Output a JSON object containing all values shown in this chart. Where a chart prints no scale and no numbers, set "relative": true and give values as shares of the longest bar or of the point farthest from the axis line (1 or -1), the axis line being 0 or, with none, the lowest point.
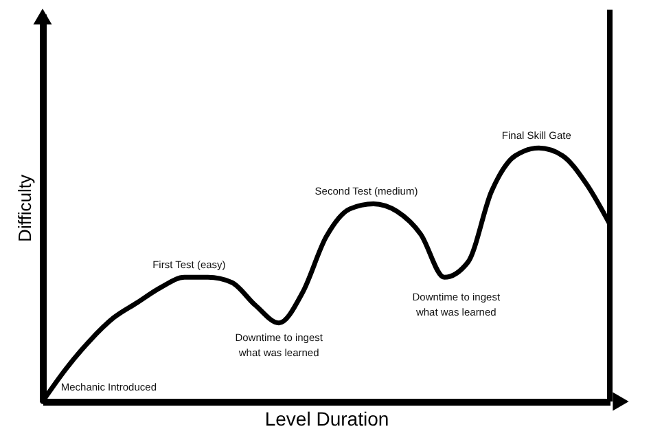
{
  "chart_data": {
    "type": "line",
    "relative": true,
    "xlabel": "Level Duration",
    "ylabel": "Difficulty",
    "categories": [
      null,
      null,
      null,
      null,
      null,
      null,
      null,
      null,
      null,
      null,
      null,
      null,
      null,
      null,
      null,
      null,
      null,
      null,
      null,
      null,
      null,
      null,
      null,
      null,
      null
    ],
    "series": [
      {
        "color": "#000000",
        "values": [
          0,
          0.13,
          0.24,
          0.33,
          0.39,
          0.45,
          0.49,
          0.49,
          0.47,
          0.38,
          0.31,
          0.43,
          0.65,
          0.76,
          0.78,
          0.75,
          0.66,
          0.49,
          0.55,
          0.83,
          0.97,
          1,
          0.97,
          0.86,
          0.7
        ]
      }
    ],
    "annotations": [
      "Mechanic Introduced",
      "First Test (easy)",
      "Downtime to ingest\nwhat was learned",
      "Second Test (medium)",
      "Downtime to ingest\nwhat was learned",
      "Final Skill Gate"
    ],
    "grid": false,
    "marker": "none",
    "line_style": "solid",
    "tick_labels": false
  }
}
